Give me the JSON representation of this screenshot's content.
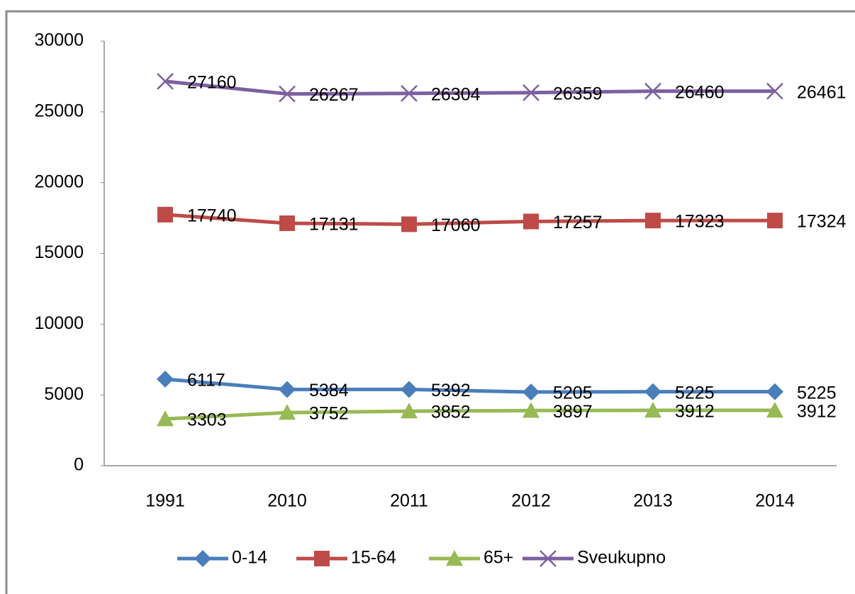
{
  "chart_data": {
    "type": "line",
    "categories": [
      "1991",
      "2010",
      "2011",
      "2012",
      "2013",
      "2014"
    ],
    "series": [
      {
        "name": "0-14",
        "color": "#4a7ebb",
        "marker": "diamond",
        "values": [
          6117,
          5384,
          5392,
          5205,
          5225,
          5225
        ]
      },
      {
        "name": "15-64",
        "color": "#be4b48",
        "marker": "square",
        "values": [
          17740,
          17131,
          17060,
          17257,
          17323,
          17324
        ]
      },
      {
        "name": "65+",
        "color": "#98b954",
        "marker": "triangle",
        "values": [
          3303,
          3752,
          3852,
          3897,
          3912,
          3912
        ]
      },
      {
        "name": "Sveukupno",
        "color": "#7d60a0",
        "marker": "x",
        "values": [
          27160,
          26267,
          26304,
          26359,
          26460,
          26461
        ]
      }
    ],
    "ylim": [
      0,
      30000
    ],
    "yticks": [
      0,
      5000,
      10000,
      15000,
      20000,
      25000,
      30000
    ],
    "grid": false,
    "data_labels": true,
    "legend": "bottom"
  }
}
